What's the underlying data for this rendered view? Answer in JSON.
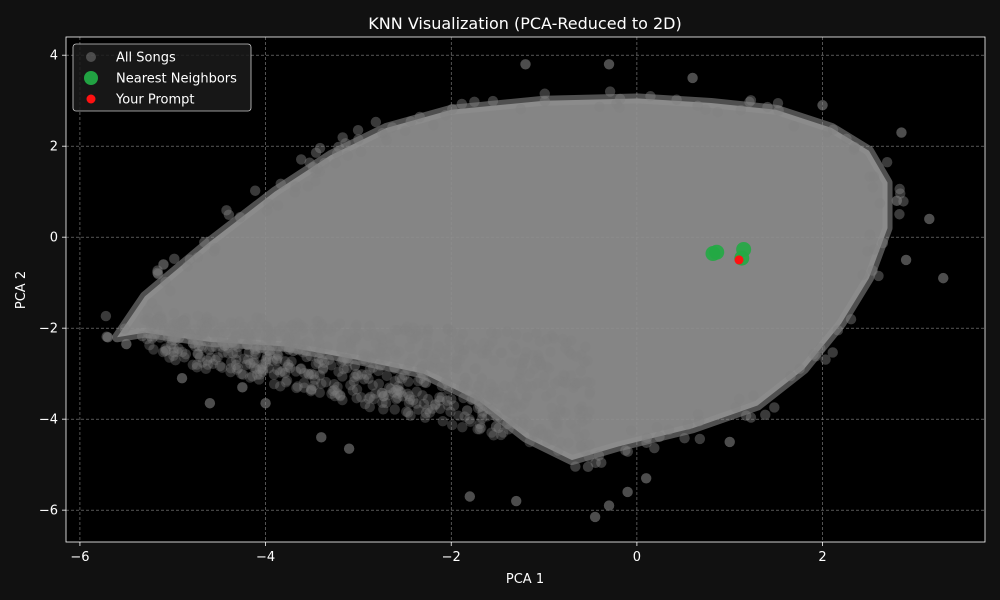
{
  "chart_data": {
    "type": "scatter",
    "title": "KNN Visualization (PCA-Reduced to 2D)",
    "xlabel": "PCA 1",
    "ylabel": "PCA 2",
    "xlim": [
      -6.15,
      3.75
    ],
    "ylim": [
      -6.7,
      4.4
    ],
    "xticks": [
      -6,
      -4,
      -2,
      0,
      2
    ],
    "yticks": [
      -6,
      -4,
      -2,
      0,
      2,
      4
    ],
    "xtick_labels": [
      "−6",
      "−4",
      "−2",
      "0",
      "2"
    ],
    "ytick_labels": [
      "−6",
      "−4",
      "−2",
      "0",
      "2",
      "4"
    ],
    "grid": true,
    "legend_position": "top-left",
    "colors": {
      "background": "#111111",
      "plot_background": "#000000",
      "all_songs": "#808080",
      "nearest_neighbors": "#22aa44",
      "prompt": "#ff1111",
      "grid": "#888888"
    },
    "series": [
      {
        "name": "All Songs",
        "description_shape": "dense cloud",
        "cloud_outline": [
          [
            -5.6,
            -2.2
          ],
          [
            -5.3,
            -1.3
          ],
          [
            -4.6,
            -0.1
          ],
          [
            -3.9,
            1.0
          ],
          [
            -3.3,
            1.8
          ],
          [
            -2.7,
            2.4
          ],
          [
            -2.0,
            2.8
          ],
          [
            -1.0,
            3.0
          ],
          [
            0.0,
            3.05
          ],
          [
            0.8,
            2.95
          ],
          [
            1.5,
            2.8
          ],
          [
            2.1,
            2.4
          ],
          [
            2.5,
            1.9
          ],
          [
            2.7,
            1.2
          ],
          [
            2.7,
            0.2
          ],
          [
            2.5,
            -0.9
          ],
          [
            2.2,
            -1.9
          ],
          [
            1.8,
            -2.9
          ],
          [
            1.3,
            -3.7
          ],
          [
            0.6,
            -4.2
          ],
          [
            -0.2,
            -4.6
          ],
          [
            -0.7,
            -4.9
          ],
          [
            -1.2,
            -4.4
          ],
          [
            -1.7,
            -3.6
          ],
          [
            -2.3,
            -3.0
          ],
          [
            -3.0,
            -2.7
          ],
          [
            -3.8,
            -2.4
          ],
          [
            -4.6,
            -2.3
          ],
          [
            -5.3,
            -2.1
          ]
        ],
        "outliers": [
          [
            -4.6,
            -3.65
          ],
          [
            -3.1,
            -4.65
          ],
          [
            -4.0,
            -3.65
          ],
          [
            -3.4,
            -4.4
          ],
          [
            -1.8,
            -5.7
          ],
          [
            -0.3,
            -5.9
          ],
          [
            -0.45,
            -6.15
          ],
          [
            -1.3,
            -5.8
          ],
          [
            0.1,
            -5.3
          ],
          [
            3.3,
            -0.9
          ],
          [
            3.15,
            0.4
          ],
          [
            2.85,
            2.3
          ],
          [
            -1.2,
            3.8
          ],
          [
            -0.3,
            3.8
          ],
          [
            0.6,
            3.5
          ],
          [
            -5.1,
            -0.6
          ],
          [
            -4.9,
            -3.1
          ],
          [
            2.0,
            2.9
          ],
          [
            -5.5,
            -2.35
          ],
          [
            -4.25,
            -3.3
          ],
          [
            1.0,
            -4.5
          ],
          [
            -0.1,
            -5.6
          ],
          [
            2.9,
            -0.5
          ],
          [
            2.8,
            0.8
          ],
          [
            -5.7,
            -2.2
          ]
        ]
      },
      {
        "name": "Nearest Neighbors",
        "points": [
          [
            0.82,
            -0.36
          ],
          [
            0.86,
            -0.33
          ],
          [
            1.15,
            -0.27
          ],
          [
            1.13,
            -0.46
          ]
        ]
      },
      {
        "name": "Your Prompt",
        "points": [
          [
            1.1,
            -0.5
          ]
        ]
      }
    ]
  }
}
